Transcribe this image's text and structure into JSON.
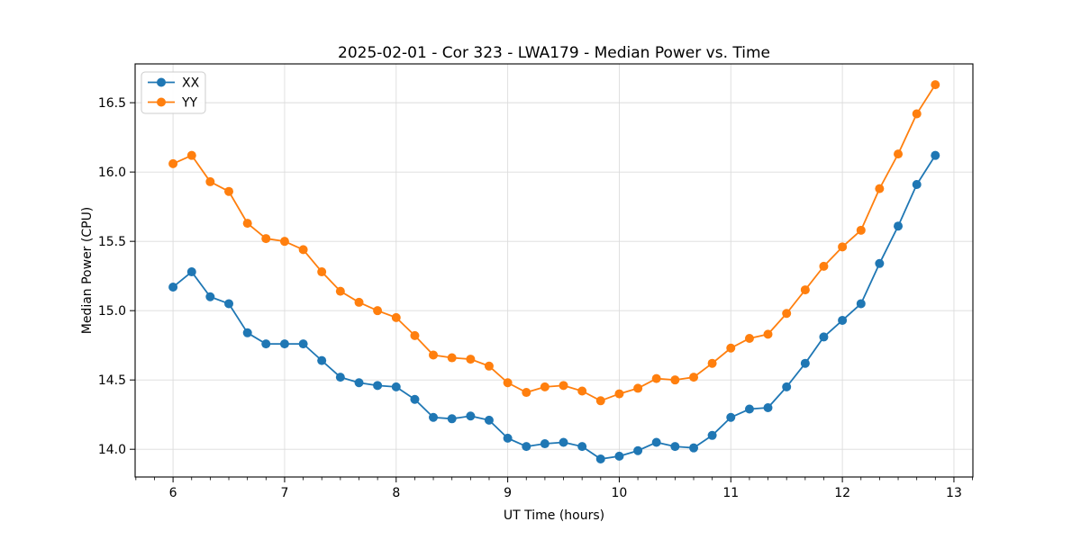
{
  "chart_data": {
    "type": "line",
    "title": "2025-02-01 - Cor 323 - LWA179 - Median Power vs. Time",
    "xlabel": "UT Time (hours)",
    "ylabel": "Median Power (CPU)",
    "xlim": [
      5.66,
      13.17
    ],
    "ylim": [
      13.8,
      16.78
    ],
    "grid": true,
    "legend_position": "upper left",
    "x_ticks": {
      "positions": [
        6,
        7,
        8,
        9,
        10,
        11,
        12,
        13
      ],
      "labels": [
        "6",
        "7",
        "8",
        "9",
        "10",
        "11",
        "12",
        "13"
      ]
    },
    "x_minor_tick_step": 0.166667,
    "y_ticks": {
      "positions": [
        14.0,
        14.5,
        15.0,
        15.5,
        16.0,
        16.5
      ],
      "labels": [
        "14.0",
        "14.5",
        "15.0",
        "15.5",
        "16.0",
        "16.5"
      ]
    },
    "x": [
      6.0,
      6.167,
      6.333,
      6.5,
      6.667,
      6.833,
      7.0,
      7.167,
      7.333,
      7.5,
      7.667,
      7.833,
      8.0,
      8.167,
      8.333,
      8.5,
      8.667,
      8.833,
      9.0,
      9.167,
      9.333,
      9.5,
      9.667,
      9.833,
      10.0,
      10.167,
      10.333,
      10.5,
      10.667,
      10.833,
      11.0,
      11.167,
      11.333,
      11.5,
      11.667,
      11.833,
      12.0,
      12.167,
      12.333,
      12.5,
      12.667,
      12.833
    ],
    "series": [
      {
        "name": "XX",
        "color": "#1f77b4",
        "marker": "circle",
        "values": [
          15.17,
          15.28,
          15.1,
          15.05,
          14.84,
          14.76,
          14.76,
          14.76,
          14.64,
          14.52,
          14.48,
          14.46,
          14.45,
          14.36,
          14.23,
          14.22,
          14.24,
          14.21,
          14.08,
          14.02,
          14.04,
          14.05,
          14.02,
          13.93,
          13.95,
          13.99,
          14.05,
          14.02,
          14.01,
          14.1,
          14.23,
          14.29,
          14.3,
          14.45,
          14.62,
          14.81,
          14.93,
          15.05,
          15.34,
          15.61,
          15.91,
          16.12
        ]
      },
      {
        "name": "YY",
        "color": "#ff7f0e",
        "marker": "circle",
        "values": [
          16.06,
          16.12,
          15.93,
          15.86,
          15.63,
          15.52,
          15.5,
          15.44,
          15.28,
          15.14,
          15.06,
          15.0,
          14.95,
          14.82,
          14.68,
          14.66,
          14.65,
          14.6,
          14.48,
          14.41,
          14.45,
          14.46,
          14.42,
          14.35,
          14.4,
          14.44,
          14.51,
          14.5,
          14.52,
          14.62,
          14.73,
          14.8,
          14.83,
          14.98,
          15.15,
          15.32,
          15.46,
          15.58,
          15.88,
          16.13,
          16.42,
          16.63
        ]
      }
    ],
    "style": {
      "background_color": "#ffffff",
      "grid_color": "#dcdcdc",
      "axis_color": "#000000",
      "legend_border_color": "#cccccc",
      "legend_fill_color": "#ffffff",
      "line_width": 1.8,
      "marker_radius": 5
    }
  }
}
